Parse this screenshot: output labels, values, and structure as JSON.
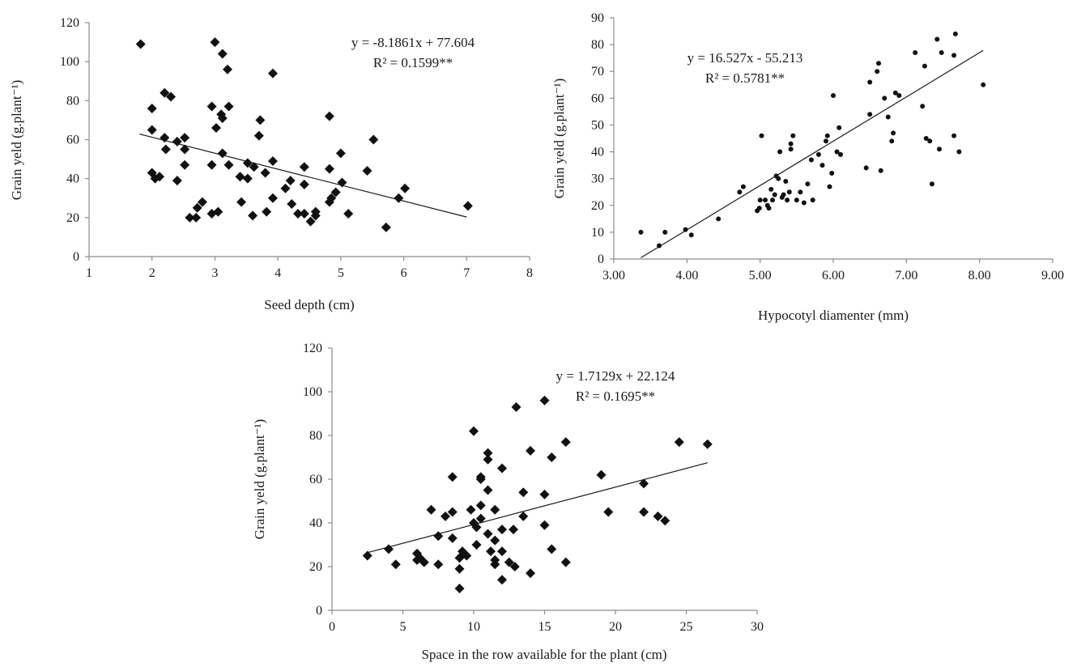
{
  "chart_data": [
    {
      "type": "scatter",
      "marker": "diamond",
      "xlabel": "Seed depth (cm)",
      "ylabel": "Grain yeld (g.plant⁻¹)",
      "xlim": [
        1,
        8
      ],
      "ylim": [
        0,
        120
      ],
      "xticks": [
        "1",
        "2",
        "3",
        "4",
        "5",
        "6",
        "7",
        "8"
      ],
      "yticks": [
        "0",
        "20",
        "40",
        "60",
        "80",
        "100",
        "120"
      ],
      "equation": "y = -8.1861x + 77.604",
      "r2": "R² = 0.1599**",
      "trendline": {
        "slope": -8.1861,
        "intercept": 77.604,
        "x_range": [
          1.8,
          7.0
        ]
      },
      "points": [
        [
          1.82,
          109
        ],
        [
          2.0,
          76
        ],
        [
          2.0,
          65
        ],
        [
          2.0,
          43
        ],
        [
          2.05,
          40
        ],
        [
          2.12,
          41
        ],
        [
          2.2,
          84
        ],
        [
          2.2,
          61
        ],
        [
          2.22,
          55
        ],
        [
          2.3,
          82
        ],
        [
          2.4,
          59
        ],
        [
          2.4,
          39
        ],
        [
          2.52,
          61
        ],
        [
          2.52,
          55
        ],
        [
          2.52,
          47
        ],
        [
          2.6,
          20
        ],
        [
          2.7,
          20
        ],
        [
          2.72,
          25
        ],
        [
          2.8,
          28
        ],
        [
          2.95,
          77
        ],
        [
          2.95,
          47
        ],
        [
          2.95,
          22
        ],
        [
          3.0,
          110
        ],
        [
          3.02,
          66
        ],
        [
          3.05,
          23
        ],
        [
          3.1,
          73
        ],
        [
          3.12,
          104
        ],
        [
          3.12,
          71
        ],
        [
          3.12,
          53
        ],
        [
          3.2,
          96
        ],
        [
          3.22,
          77
        ],
        [
          3.22,
          47
        ],
        [
          3.4,
          41
        ],
        [
          3.42,
          28
        ],
        [
          3.52,
          48
        ],
        [
          3.52,
          40
        ],
        [
          3.6,
          21
        ],
        [
          3.62,
          46
        ],
        [
          3.7,
          62
        ],
        [
          3.72,
          70
        ],
        [
          3.8,
          43
        ],
        [
          3.82,
          23
        ],
        [
          3.92,
          94
        ],
        [
          3.92,
          49
        ],
        [
          3.92,
          30
        ],
        [
          4.12,
          35
        ],
        [
          4.2,
          39
        ],
        [
          4.22,
          27
        ],
        [
          4.32,
          22
        ],
        [
          4.42,
          46
        ],
        [
          4.42,
          37
        ],
        [
          4.42,
          22
        ],
        [
          4.52,
          18
        ],
        [
          4.6,
          21
        ],
        [
          4.6,
          23
        ],
        [
          4.82,
          72
        ],
        [
          4.82,
          45
        ],
        [
          4.82,
          28
        ],
        [
          4.85,
          30
        ],
        [
          4.92,
          33
        ],
        [
          5.0,
          53
        ],
        [
          5.02,
          38
        ],
        [
          5.12,
          22
        ],
        [
          5.42,
          44
        ],
        [
          5.52,
          60
        ],
        [
          5.72,
          15
        ],
        [
          5.92,
          30
        ],
        [
          6.02,
          35
        ],
        [
          7.02,
          26
        ]
      ]
    },
    {
      "type": "scatter",
      "marker": "dot",
      "xlabel": "Hypocotyl diamenter (mm)",
      "ylabel": "Grain yeld (g.plant⁻¹)",
      "xlim": [
        3,
        9
      ],
      "ylim": [
        0,
        90
      ],
      "xticks": [
        "3.00",
        "4.00",
        "5.00",
        "6.00",
        "7.00",
        "8.00",
        "9.00"
      ],
      "yticks": [
        "0",
        "10",
        "20",
        "30",
        "40",
        "50",
        "60",
        "70",
        "80",
        "90"
      ],
      "equation": "y = 16.527x - 55.213",
      "r2": "R² = 0.5781**",
      "trendline": {
        "slope": 16.527,
        "intercept": -55.213,
        "x_range": [
          3.37,
          8.05
        ]
      },
      "points": [
        [
          3.37,
          10
        ],
        [
          3.62,
          5
        ],
        [
          3.7,
          10
        ],
        [
          3.98,
          11
        ],
        [
          4.06,
          9
        ],
        [
          4.43,
          15
        ],
        [
          4.72,
          25
        ],
        [
          4.77,
          27
        ],
        [
          4.96,
          18
        ],
        [
          4.99,
          19
        ],
        [
          5.0,
          22
        ],
        [
          5.02,
          46
        ],
        [
          5.07,
          22
        ],
        [
          5.1,
          20
        ],
        [
          5.12,
          19
        ],
        [
          5.15,
          26
        ],
        [
          5.17,
          22
        ],
        [
          5.2,
          24
        ],
        [
          5.22,
          31
        ],
        [
          5.25,
          30
        ],
        [
          5.27,
          40
        ],
        [
          5.3,
          23
        ],
        [
          5.32,
          24
        ],
        [
          5.35,
          29
        ],
        [
          5.37,
          22
        ],
        [
          5.4,
          25
        ],
        [
          5.42,
          43
        ],
        [
          5.42,
          41
        ],
        [
          5.45,
          46
        ],
        [
          5.5,
          22
        ],
        [
          5.55,
          25
        ],
        [
          5.6,
          21
        ],
        [
          5.65,
          28
        ],
        [
          5.7,
          37
        ],
        [
          5.72,
          22
        ],
        [
          5.8,
          39
        ],
        [
          5.85,
          35
        ],
        [
          5.9,
          44
        ],
        [
          5.92,
          46
        ],
        [
          5.95,
          27
        ],
        [
          5.98,
          32
        ],
        [
          6.0,
          61
        ],
        [
          6.05,
          40
        ],
        [
          6.08,
          49
        ],
        [
          6.1,
          39
        ],
        [
          6.45,
          34
        ],
        [
          6.5,
          54
        ],
        [
          6.5,
          66
        ],
        [
          6.6,
          70
        ],
        [
          6.62,
          73
        ],
        [
          6.65,
          33
        ],
        [
          6.7,
          60
        ],
        [
          6.75,
          53
        ],
        [
          6.8,
          44
        ],
        [
          6.82,
          47
        ],
        [
          6.85,
          62
        ],
        [
          6.9,
          61
        ],
        [
          7.12,
          77
        ],
        [
          7.22,
          57
        ],
        [
          7.25,
          72
        ],
        [
          7.27,
          45
        ],
        [
          7.32,
          44
        ],
        [
          7.35,
          28
        ],
        [
          7.45,
          41
        ],
        [
          7.42,
          82
        ],
        [
          7.48,
          77
        ],
        [
          7.65,
          76
        ],
        [
          7.67,
          84
        ],
        [
          7.65,
          46
        ],
        [
          7.72,
          40
        ],
        [
          8.05,
          65
        ]
      ]
    },
    {
      "type": "scatter",
      "marker": "diamond",
      "xlabel": "Space in the row available  for the plant (cm)",
      "ylabel": "Grain yeld (g.plant⁻¹)",
      "xlim": [
        0,
        30
      ],
      "ylim": [
        0,
        120
      ],
      "xticks": [
        "0",
        "5",
        "10",
        "15",
        "20",
        "25",
        "30"
      ],
      "yticks": [
        "0",
        "20",
        "40",
        "60",
        "80",
        "100",
        "120"
      ],
      "equation": "y = 1.7129x + 22.124",
      "r2": "R² = 0.1695**",
      "trendline": {
        "slope": 1.7129,
        "intercept": 22.124,
        "x_range": [
          2.5,
          26.5
        ]
      },
      "points": [
        [
          2.5,
          25
        ],
        [
          4.0,
          28
        ],
        [
          4.5,
          21
        ],
        [
          6.0,
          26
        ],
        [
          6.0,
          23
        ],
        [
          6.2,
          24
        ],
        [
          6.5,
          22
        ],
        [
          7.0,
          46
        ],
        [
          7.5,
          34
        ],
        [
          7.5,
          21
        ],
        [
          8.0,
          43
        ],
        [
          8.5,
          45
        ],
        [
          8.5,
          61
        ],
        [
          8.5,
          33
        ],
        [
          9.0,
          24
        ],
        [
          9.0,
          19
        ],
        [
          9.0,
          10
        ],
        [
          9.2,
          27
        ],
        [
          9.5,
          25
        ],
        [
          9.8,
          46
        ],
        [
          10.0,
          82
        ],
        [
          10.0,
          40
        ],
        [
          10.2,
          38
        ],
        [
          10.2,
          30
        ],
        [
          10.5,
          61
        ],
        [
          10.5,
          48
        ],
        [
          10.5,
          60
        ],
        [
          10.5,
          42
        ],
        [
          11.0,
          72
        ],
        [
          11.0,
          69
        ],
        [
          11.0,
          55
        ],
        [
          11.0,
          35
        ],
        [
          11.2,
          27
        ],
        [
          11.5,
          46
        ],
        [
          11.5,
          23
        ],
        [
          11.5,
          21
        ],
        [
          11.5,
          32
        ],
        [
          12.0,
          65
        ],
        [
          12.0,
          37
        ],
        [
          12.0,
          27
        ],
        [
          12.0,
          14
        ],
        [
          12.5,
          22
        ],
        [
          12.8,
          37
        ],
        [
          12.9,
          20
        ],
        [
          13.0,
          93
        ],
        [
          13.5,
          54
        ],
        [
          13.5,
          43
        ],
        [
          14.0,
          73
        ],
        [
          14.0,
          17
        ],
        [
          15.0,
          96
        ],
        [
          15.0,
          53
        ],
        [
          15.0,
          39
        ],
        [
          15.5,
          70
        ],
        [
          15.5,
          28
        ],
        [
          16.5,
          77
        ],
        [
          16.5,
          22
        ],
        [
          19.0,
          62
        ],
        [
          19.5,
          45
        ],
        [
          22.0,
          58
        ],
        [
          22.0,
          45
        ],
        [
          23.0,
          43
        ],
        [
          23.5,
          41
        ],
        [
          24.5,
          77
        ],
        [
          26.5,
          76
        ]
      ]
    }
  ]
}
